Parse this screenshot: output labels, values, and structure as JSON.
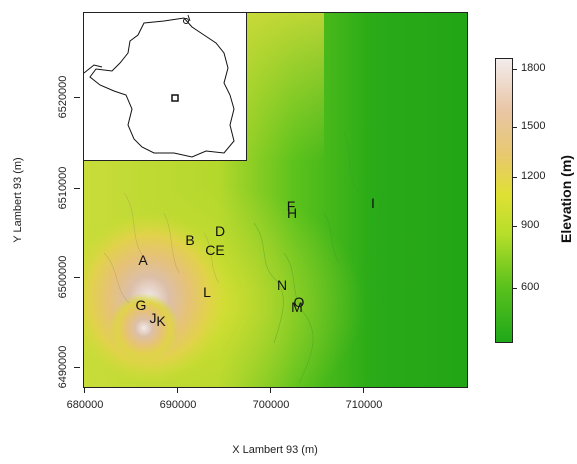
{
  "axes": {
    "x_label": "X Lambert 93 (m)",
    "y_label": "Y Lambert 93 (m)",
    "x_ticks": [
      "680000",
      "690000",
      "700000",
      "710000"
    ],
    "y_ticks": [
      "6490000",
      "6500000",
      "6510000",
      "6520000"
    ]
  },
  "colorbar": {
    "title": "Elevation (m)",
    "ticks": [
      "1800",
      "1500",
      "1200",
      "900",
      "600"
    ],
    "colors": [
      "#1fa81a",
      "#5cc21c",
      "#b6de2a",
      "#dfe034",
      "#e8c86e",
      "#e9c6a6",
      "#f2ecec"
    ]
  },
  "sites": [
    {
      "label": "A"
    },
    {
      "label": "B"
    },
    {
      "label": "CE"
    },
    {
      "label": "D"
    },
    {
      "label": "F"
    },
    {
      "label": "H"
    },
    {
      "label": "I"
    },
    {
      "label": "G"
    },
    {
      "label": "J"
    },
    {
      "label": "K"
    },
    {
      "label": "L"
    },
    {
      "label": "N"
    },
    {
      "label": "O"
    },
    {
      "label": "M"
    }
  ],
  "inset": {
    "content": "France outline locator map"
  }
}
